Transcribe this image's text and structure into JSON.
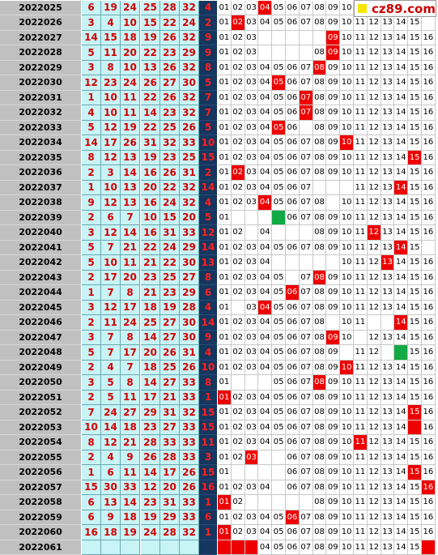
{
  "logo": {
    "text": "cz89.com"
  },
  "hit_color": "#ee0000",
  "green_color": "#11aa44",
  "positions": [
    "01",
    "02",
    "03",
    "04",
    "05",
    "06",
    "07",
    "08",
    "09",
    "10",
    "11",
    "12",
    "13",
    "14",
    "15",
    "16"
  ],
  "rows": [
    {
      "issue": "2022025",
      "reds": [
        "6",
        "19",
        "24",
        "25",
        "28",
        "32"
      ],
      "blue": "4",
      "posd": [
        "01",
        "02",
        "03",
        "04",
        "05",
        "06",
        "07",
        "08",
        "09",
        "10",
        "",
        "",
        "",
        "",
        "",
        ""
      ],
      "hits": [
        4
      ],
      "green": []
    },
    {
      "issue": "2022026",
      "reds": [
        "3",
        "4",
        "10",
        "15",
        "22",
        "24"
      ],
      "blue": "2",
      "posd": [
        "01",
        "02",
        "03",
        "04",
        "05",
        "06",
        "07",
        "08",
        "09",
        "10",
        "11",
        "12",
        "13",
        "14",
        "15",
        ""
      ],
      "hits": [
        2
      ],
      "green": []
    },
    {
      "issue": "2022027",
      "reds": [
        "14",
        "15",
        "18",
        "19",
        "26",
        "32"
      ],
      "blue": "9",
      "posd": [
        "01",
        "02",
        "03",
        "",
        "",
        "",
        "",
        "",
        "09",
        "10",
        "11",
        "12",
        "13",
        "14",
        "15",
        "16"
      ],
      "hits": [
        9
      ],
      "green": []
    },
    {
      "issue": "2022028",
      "reds": [
        "5",
        "11",
        "20",
        "22",
        "23",
        "29"
      ],
      "blue": "9",
      "posd": [
        "01",
        "02",
        "03",
        "",
        "",
        "",
        "",
        "08",
        "09",
        "10",
        "11",
        "12",
        "13",
        "14",
        "15",
        "16"
      ],
      "hits": [
        9
      ],
      "green": []
    },
    {
      "issue": "2022029",
      "reds": [
        "3",
        "8",
        "10",
        "13",
        "26",
        "32"
      ],
      "blue": "8",
      "posd": [
        "01",
        "02",
        "03",
        "04",
        "05",
        "06",
        "07",
        "08",
        "09",
        "10",
        "11",
        "12",
        "13",
        "14",
        "15",
        "16"
      ],
      "hits": [
        8
      ],
      "green": []
    },
    {
      "issue": "2022030",
      "reds": [
        "12",
        "23",
        "24",
        "26",
        "27",
        "30"
      ],
      "blue": "5",
      "posd": [
        "01",
        "02",
        "03",
        "04",
        "05",
        "06",
        "07",
        "08",
        "09",
        "10",
        "11",
        "12",
        "13",
        "14",
        "15",
        "16"
      ],
      "hits": [
        5
      ],
      "green": []
    },
    {
      "issue": "2022031",
      "reds": [
        "1",
        "10",
        "11",
        "22",
        "26",
        "32"
      ],
      "blue": "7",
      "posd": [
        "01",
        "02",
        "03",
        "04",
        "05",
        "06",
        "07",
        "08",
        "09",
        "10",
        "11",
        "12",
        "13",
        "14",
        "15",
        "16"
      ],
      "hits": [
        7
      ],
      "green": []
    },
    {
      "issue": "2022032",
      "reds": [
        "4",
        "10",
        "11",
        "14",
        "23",
        "32"
      ],
      "blue": "7",
      "posd": [
        "01",
        "02",
        "03",
        "04",
        "05",
        "06",
        "07",
        "08",
        "09",
        "10",
        "11",
        "12",
        "13",
        "14",
        "15",
        "16"
      ],
      "hits": [
        7
      ],
      "green": []
    },
    {
      "issue": "2022033",
      "reds": [
        "5",
        "12",
        "19",
        "22",
        "25",
        "26"
      ],
      "blue": "5",
      "posd": [
        "01",
        "02",
        "03",
        "04",
        "05",
        "06",
        "",
        "08",
        "09",
        "10",
        "11",
        "12",
        "13",
        "14",
        "15",
        "16"
      ],
      "hits": [
        5
      ],
      "green": []
    },
    {
      "issue": "2022034",
      "reds": [
        "14",
        "17",
        "26",
        "31",
        "32",
        "33"
      ],
      "blue": "10",
      "posd": [
        "01",
        "02",
        "03",
        "04",
        "05",
        "06",
        "07",
        "08",
        "09",
        "10",
        "11",
        "12",
        "13",
        "14",
        "15",
        "16"
      ],
      "hits": [
        10
      ],
      "green": []
    },
    {
      "issue": "2022035",
      "reds": [
        "8",
        "12",
        "13",
        "19",
        "23",
        "25"
      ],
      "blue": "15",
      "posd": [
        "01",
        "02",
        "03",
        "04",
        "05",
        "06",
        "07",
        "08",
        "09",
        "10",
        "11",
        "12",
        "13",
        "14",
        "15",
        "16"
      ],
      "hits": [
        15
      ],
      "green": []
    },
    {
      "issue": "2022036",
      "reds": [
        "2",
        "3",
        "14",
        "16",
        "26",
        "31"
      ],
      "blue": "2",
      "posd": [
        "01",
        "02",
        "03",
        "04",
        "05",
        "06",
        "07",
        "08",
        "09",
        "10",
        "11",
        "12",
        "13",
        "14",
        "15",
        "16"
      ],
      "hits": [
        2
      ],
      "green": []
    },
    {
      "issue": "2022037",
      "reds": [
        "1",
        "10",
        "13",
        "20",
        "22",
        "32"
      ],
      "blue": "14",
      "posd": [
        "01",
        "02",
        "03",
        "04",
        "05",
        "06",
        "07",
        "",
        "",
        "",
        "11",
        "12",
        "13",
        "14",
        "15",
        "16"
      ],
      "hits": [
        14
      ],
      "green": []
    },
    {
      "issue": "2022038",
      "reds": [
        "9",
        "12",
        "13",
        "16",
        "24",
        "32"
      ],
      "blue": "4",
      "posd": [
        "01",
        "02",
        "03",
        "04",
        "05",
        "06",
        "07",
        "08",
        "",
        "10",
        "11",
        "12",
        "13",
        "14",
        "15",
        "16"
      ],
      "hits": [
        4
      ],
      "green": []
    },
    {
      "issue": "2022039",
      "reds": [
        "2",
        "6",
        "7",
        "10",
        "15",
        "20"
      ],
      "blue": "5",
      "posd": [
        "01",
        "",
        "",
        "",
        "",
        "06",
        "07",
        "08",
        "09",
        "10",
        "11",
        "12",
        "13",
        "14",
        "15",
        "16"
      ],
      "hits": [],
      "green": [
        5
      ]
    },
    {
      "issue": "2022040",
      "reds": [
        "3",
        "12",
        "14",
        "16",
        "31",
        "33"
      ],
      "blue": "12",
      "posd": [
        "01",
        "02",
        "",
        "04",
        "",
        "",
        "",
        "08",
        "09",
        "10",
        "11",
        "12",
        "13",
        "14",
        "15",
        "16"
      ],
      "hits": [
        12
      ],
      "green": []
    },
    {
      "issue": "2022041",
      "reds": [
        "5",
        "7",
        "21",
        "22",
        "24",
        "29"
      ],
      "blue": "14",
      "posd": [
        "01",
        "02",
        "03",
        "04",
        "05",
        "06",
        "07",
        "08",
        "09",
        "10",
        "11",
        "12",
        "13",
        "14",
        "15",
        ""
      ],
      "hits": [
        14
      ],
      "green": []
    },
    {
      "issue": "2022042",
      "reds": [
        "5",
        "10",
        "11",
        "21",
        "22",
        "30"
      ],
      "blue": "13",
      "posd": [
        "01",
        "02",
        "03",
        "04",
        "",
        "",
        "",
        "",
        "",
        "10",
        "11",
        "12",
        "13",
        "14",
        "15",
        "16"
      ],
      "hits": [
        13
      ],
      "green": []
    },
    {
      "issue": "2022043",
      "reds": [
        "2",
        "17",
        "20",
        "23",
        "25",
        "27"
      ],
      "blue": "8",
      "posd": [
        "01",
        "02",
        "03",
        "04",
        "05",
        "",
        "07",
        "08",
        "09",
        "10",
        "11",
        "12",
        "13",
        "14",
        "15",
        "16"
      ],
      "hits": [
        8
      ],
      "green": []
    },
    {
      "issue": "2022044",
      "reds": [
        "1",
        "7",
        "8",
        "21",
        "23",
        "29"
      ],
      "blue": "6",
      "posd": [
        "01",
        "02",
        "03",
        "04",
        "05",
        "06",
        "07",
        "08",
        "09",
        "10",
        "11",
        "12",
        "13",
        "14",
        "15",
        "16"
      ],
      "hits": [
        6
      ],
      "green": []
    },
    {
      "issue": "2022045",
      "reds": [
        "3",
        "12",
        "17",
        "18",
        "19",
        "28"
      ],
      "blue": "4",
      "posd": [
        "01",
        "",
        "03",
        "04",
        "05",
        "06",
        "07",
        "08",
        "09",
        "10",
        "11",
        "12",
        "13",
        "14",
        "15",
        "16"
      ],
      "hits": [
        4
      ],
      "green": []
    },
    {
      "issue": "2022046",
      "reds": [
        "2",
        "11",
        "24",
        "25",
        "27",
        "30"
      ],
      "blue": "14",
      "posd": [
        "01",
        "02",
        "03",
        "04",
        "05",
        "06",
        "07",
        "08",
        "",
        "10",
        "11",
        "",
        "",
        "14",
        "15",
        "16"
      ],
      "hits": [
        14
      ],
      "green": []
    },
    {
      "issue": "2022047",
      "reds": [
        "3",
        "7",
        "8",
        "14",
        "27",
        "30"
      ],
      "blue": "9",
      "posd": [
        "01",
        "02",
        "03",
        "04",
        "05",
        "06",
        "07",
        "08",
        "09",
        "10",
        "",
        "12",
        "13",
        "14",
        "15",
        "16"
      ],
      "hits": [
        9
      ],
      "green": []
    },
    {
      "issue": "2022048",
      "reds": [
        "5",
        "7",
        "17",
        "20",
        "26",
        "31"
      ],
      "blue": "4",
      "posd": [
        "01",
        "02",
        "03",
        "04",
        "05",
        "06",
        "07",
        "08",
        "09",
        "",
        "11",
        "12",
        "",
        "",
        "15",
        "16"
      ],
      "hits": [],
      "green": [
        14
      ]
    },
    {
      "issue": "2022049",
      "reds": [
        "2",
        "4",
        "7",
        "18",
        "25",
        "26"
      ],
      "blue": "10",
      "posd": [
        "01",
        "02",
        "03",
        "04",
        "05",
        "06",
        "07",
        "08",
        "09",
        "10",
        "11",
        "12",
        "13",
        "14",
        "15",
        "16"
      ],
      "hits": [
        10
      ],
      "green": []
    },
    {
      "issue": "2022050",
      "reds": [
        "3",
        "5",
        "8",
        "14",
        "27",
        "33"
      ],
      "blue": "8",
      "posd": [
        "01",
        "",
        "",
        "",
        "05",
        "06",
        "07",
        "08",
        "09",
        "10",
        "11",
        "12",
        "13",
        "14",
        "15",
        "16"
      ],
      "hits": [
        8
      ],
      "green": []
    },
    {
      "issue": "2022051",
      "reds": [
        "2",
        "5",
        "11",
        "17",
        "21",
        "33"
      ],
      "blue": "1",
      "posd": [
        "01",
        "02",
        "03",
        "04",
        "05",
        "06",
        "07",
        "08",
        "09",
        "10",
        "11",
        "12",
        "13",
        "14",
        "15",
        "16"
      ],
      "hits": [
        1
      ],
      "green": []
    },
    {
      "issue": "2022052",
      "reds": [
        "7",
        "24",
        "27",
        "29",
        "31",
        "32"
      ],
      "blue": "15",
      "posd": [
        "01",
        "02",
        "03",
        "04",
        "05",
        "06",
        "07",
        "08",
        "09",
        "10",
        "11",
        "12",
        "13",
        "14",
        "15",
        "16"
      ],
      "hits": [
        15
      ],
      "green": []
    },
    {
      "issue": "2022053",
      "reds": [
        "10",
        "14",
        "18",
        "23",
        "27",
        "33"
      ],
      "blue": "15",
      "posd": [
        "01",
        "02",
        "03",
        "04",
        "05",
        "06",
        "07",
        "08",
        "09",
        "10",
        "11",
        "12",
        "13",
        "14",
        "",
        "16"
      ],
      "hits": [
        15
      ],
      "green": []
    },
    {
      "issue": "2022054",
      "reds": [
        "8",
        "12",
        "21",
        "28",
        "33",
        "33"
      ],
      "blue": "11",
      "posd": [
        "01",
        "02",
        "03",
        "04",
        "05",
        "06",
        "07",
        "08",
        "09",
        "10",
        "11",
        "12",
        "13",
        "14",
        "15",
        "16"
      ],
      "hits": [
        11
      ],
      "green": []
    },
    {
      "issue": "2022055",
      "reds": [
        "2",
        "4",
        "9",
        "26",
        "28",
        "33"
      ],
      "blue": "3",
      "posd": [
        "01",
        "02",
        "03",
        "",
        "",
        "06",
        "07",
        "08",
        "09",
        "10",
        "11",
        "12",
        "13",
        "14",
        "15",
        "16"
      ],
      "hits": [
        3
      ],
      "green": []
    },
    {
      "issue": "2022056",
      "reds": [
        "1",
        "6",
        "11",
        "14",
        "17",
        "26"
      ],
      "blue": "15",
      "posd": [
        "01",
        "",
        "",
        "",
        "",
        "06",
        "07",
        "08",
        "09",
        "10",
        "11",
        "12",
        "13",
        "14",
        "15",
        "16"
      ],
      "hits": [
        15
      ],
      "green": []
    },
    {
      "issue": "2022057",
      "reds": [
        "15",
        "30",
        "33",
        "12",
        "20",
        "26"
      ],
      "blue": "16",
      "posd": [
        "01",
        "02",
        "03",
        "04",
        "",
        "06",
        "07",
        "08",
        "09",
        "10",
        "11",
        "12",
        "13",
        "14",
        "15",
        "16"
      ],
      "hits": [
        16
      ],
      "green": []
    },
    {
      "issue": "2022058",
      "reds": [
        "6",
        "13",
        "14",
        "23",
        "31",
        "33"
      ],
      "blue": "1",
      "posd": [
        "01",
        "02",
        "",
        "",
        "",
        "",
        "",
        "08",
        "09",
        "10",
        "11",
        "12",
        "13",
        "14",
        "15",
        "16"
      ],
      "hits": [
        1
      ],
      "green": []
    },
    {
      "issue": "2022059",
      "reds": [
        "6",
        "9",
        "18",
        "19",
        "29",
        "33"
      ],
      "blue": "6",
      "posd": [
        "01",
        "02",
        "03",
        "04",
        "05",
        "06",
        "07",
        "08",
        "09",
        "10",
        "11",
        "12",
        "13",
        "14",
        "15",
        "16"
      ],
      "hits": [
        6
      ],
      "green": []
    },
    {
      "issue": "2022060",
      "reds": [
        "16",
        "18",
        "19",
        "24",
        "28",
        "32"
      ],
      "blue": "1",
      "posd": [
        "01",
        "02",
        "03",
        "04",
        "05",
        "06",
        "07",
        "08",
        "09",
        "10",
        "11",
        "12",
        "13",
        "14",
        "15",
        "16"
      ],
      "hits": [
        1
      ],
      "green": []
    },
    {
      "issue": "2022061",
      "reds": [
        "",
        "",
        "",
        "",
        "",
        ""
      ],
      "blue": "",
      "posd": [
        "",
        "",
        "",
        "04",
        "05",
        "06",
        "07",
        "08",
        "09",
        "10",
        "11",
        "12",
        "13",
        "14",
        "15",
        ""
      ],
      "hits": [],
      "green": [],
      "redfill": [
        1,
        2,
        3,
        16
      ]
    }
  ]
}
